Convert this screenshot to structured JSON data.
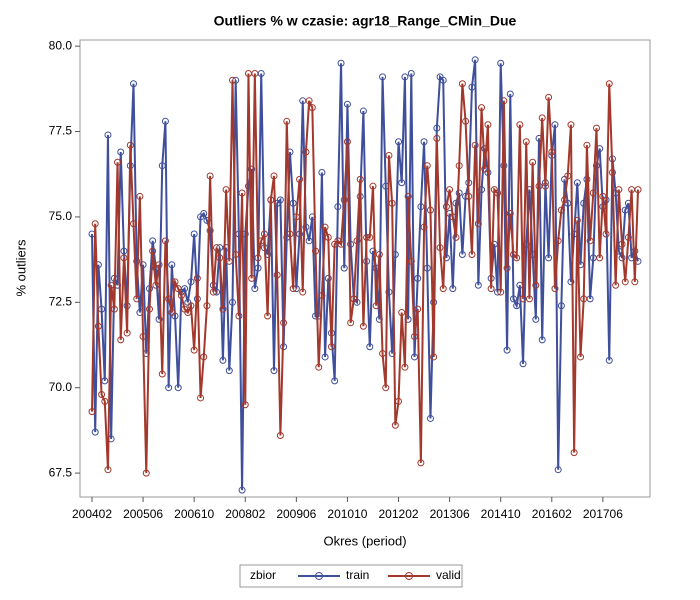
{
  "chart_data": {
    "type": "line",
    "title": "Outliers % w czasie: agr18_Range_CMin_Due",
    "x_label": "Okres (period)",
    "y_label": "% outliers",
    "legend_title": "zbior",
    "legend": "bottom",
    "categories": [
      "200402",
      null,
      null,
      null,
      null,
      null,
      null,
      null,
      null,
      null,
      null,
      null,
      null,
      null,
      null,
      null,
      "200506",
      null,
      null,
      null,
      null,
      null,
      null,
      null,
      null,
      null,
      null,
      null,
      null,
      null,
      null,
      null,
      "200610",
      null,
      null,
      null,
      null,
      null,
      null,
      null,
      null,
      null,
      null,
      null,
      null,
      null,
      null,
      null,
      "200802",
      null,
      null,
      null,
      null,
      null,
      null,
      null,
      null,
      null,
      null,
      null,
      null,
      null,
      null,
      null,
      "200906",
      null,
      null,
      null,
      null,
      null,
      null,
      null,
      null,
      null,
      null,
      null,
      null,
      null,
      null,
      null,
      "201010",
      null,
      null,
      null,
      null,
      null,
      null,
      null,
      null,
      null,
      null,
      null,
      null,
      null,
      null,
      null,
      "201202",
      null,
      null,
      null,
      null,
      null,
      null,
      null,
      null,
      null,
      null,
      null,
      null,
      null,
      null,
      null,
      "201306",
      null,
      null,
      null,
      null,
      null,
      null,
      null,
      null,
      null,
      null,
      null,
      null,
      null,
      null,
      null,
      "201410",
      null,
      null,
      null,
      null,
      null,
      null,
      null,
      null,
      null,
      null,
      null,
      null,
      null,
      null,
      null,
      "201602",
      null,
      null,
      null,
      null,
      null,
      null,
      null,
      null,
      null,
      null,
      null,
      null,
      null,
      null,
      null,
      "201706",
      null,
      null,
      null,
      null,
      null,
      null,
      null,
      null,
      null,
      null,
      null
    ],
    "series": [
      {
        "name": "train",
        "color": "#3f4f9b",
        "values": [
          74.5,
          68.7,
          73.6,
          72.3,
          70.2,
          77.4,
          68.5,
          73.2,
          73.0,
          76.9,
          74.0,
          72.4,
          76.5,
          78.9,
          73.7,
          72.2,
          73.6,
          71.0,
          72.9,
          74.3,
          73.5,
          72.0,
          76.5,
          77.8,
          70.0,
          73.6,
          72.1,
          70.0,
          72.8,
          72.9,
          72.5,
          73.1,
          74.5,
          72.6,
          75.0,
          75.1,
          74.9,
          74.6,
          73.0,
          72.8,
          74.1,
          70.8,
          74.1,
          70.5,
          72.5,
          79.0,
          74.5,
          67.0,
          74.5,
          75.9,
          76.4,
          72.9,
          73.5,
          79.2,
          74.1,
          73.9,
          75.5,
          70.5,
          75.4,
          75.5,
          71.2,
          74.4,
          76.9,
          75.4,
          72.9,
          74.5,
          78.4,
          74.7,
          74.3,
          75.0,
          72.1,
          72.1,
          76.3,
          70.9,
          73.2,
          71.6,
          70.2,
          75.3,
          79.5,
          73.5,
          78.3,
          74.2,
          72.6,
          72.5,
          75.6,
          78.1,
          73.7,
          71.2,
          74.0,
          73.5,
          72.0,
          79.1,
          75.9,
          72.8,
          71.0,
          73.9,
          77.2,
          76.0,
          79.1,
          72.0,
          79.2,
          70.9,
          73.2,
          75.3,
          77.2,
          73.5,
          69.1,
          72.5,
          77.6,
          79.1,
          79.0,
          73.8,
          75.1,
          72.9,
          75.4,
          75.7,
          73.9,
          75.6,
          76.0,
          78.8,
          79.6,
          73.0,
          75.8,
          77.0,
          76.3,
          73.2,
          74.2,
          72.8,
          79.5,
          76.5,
          71.1,
          78.6,
          72.6,
          72.4,
          73.0,
          70.7,
          74.2,
          75.8,
          73.9,
          72.0,
          77.3,
          71.4,
          76.0,
          73.8,
          76.8,
          77.7,
          67.6,
          72.4,
          76.1,
          75.4,
          73.1,
          74.5,
          76.0,
          73.6,
          75.4,
          76.1,
          72.6,
          73.8,
          76.5,
          77.0,
          75.3,
          75.5,
          70.8,
          76.7,
          75.7,
          74.0,
          73.8,
          75.2,
          75.4,
          73.8,
          74.0,
          73.7
        ]
      },
      {
        "name": "valid",
        "color": "#a3382c",
        "values": [
          69.3,
          74.8,
          71.8,
          69.8,
          69.6,
          67.6,
          73.0,
          72.3,
          76.6,
          71.4,
          73.8,
          71.6,
          77.1,
          74.8,
          72.6,
          75.6,
          71.5,
          67.5,
          72.3,
          74.0,
          73.0,
          73.6,
          70.4,
          74.3,
          72.6,
          72.2,
          73.1,
          72.9,
          72.7,
          72.3,
          72.2,
          72.4,
          71.1,
          73.2,
          69.7,
          70.9,
          72.4,
          76.2,
          72.8,
          74.1,
          73.8,
          72.3,
          75.8,
          73.7,
          79.0,
          73.9,
          72.1,
          75.7,
          69.5,
          79.2,
          73.2,
          79.2,
          73.8,
          74.3,
          74.5,
          72.1,
          75.5,
          76.2,
          73.3,
          68.6,
          71.9,
          77.8,
          74.5,
          72.9,
          75.0,
          76.1,
          72.8,
          76.9,
          78.4,
          78.2,
          74.0,
          70.6,
          72.7,
          74.7,
          74.4,
          71.2,
          74.2,
          74.3,
          74.2,
          75.5,
          77.2,
          71.9,
          72.6,
          74.3,
          76.1,
          71.8,
          74.4,
          74.4,
          75.9,
          72.4,
          73.9,
          71.0,
          70.0,
          76.8,
          75.4,
          68.9,
          69.6,
          72.2,
          70.6,
          75.6,
          73.7,
          71.5,
          72.3,
          67.8,
          74.7,
          76.5,
          75.2,
          70.9,
          77.3,
          74.1,
          72.9,
          75.3,
          75.8,
          75.0,
          74.4,
          76.5,
          78.9,
          77.8,
          75.6,
          73.9,
          77.1,
          74.8,
          78.2,
          76.4,
          77.7,
          72.9,
          75.8,
          75.7,
          72.8,
          78.4,
          73.5,
          75.1,
          73.9,
          73.8,
          77.7,
          72.6,
          77.2,
          72.6,
          76.6,
          73.0,
          75.9,
          77.9,
          75.9,
          78.5,
          76.9,
          72.9,
          74.3,
          75.2,
          75.5,
          76.2,
          77.7,
          68.1,
          74.9,
          70.9,
          72.6,
          77.1,
          74.3,
          75.7,
          77.6,
          73.8,
          75.6,
          74.5,
          78.9,
          76.3,
          73.0,
          75.8,
          74.2,
          73.1,
          74.4,
          75.8,
          73.1,
          75.8
        ]
      }
    ],
    "ylim": [
      66.8,
      80.18
    ],
    "yticks": [
      67.5,
      {
        "value": 70,
        "label": "70.0"
      },
      72.5,
      {
        "value": 75,
        "label": "75.0"
      },
      77.5,
      {
        "value": 80,
        "label": "80.0"
      }
    ],
    "grid": false
  }
}
